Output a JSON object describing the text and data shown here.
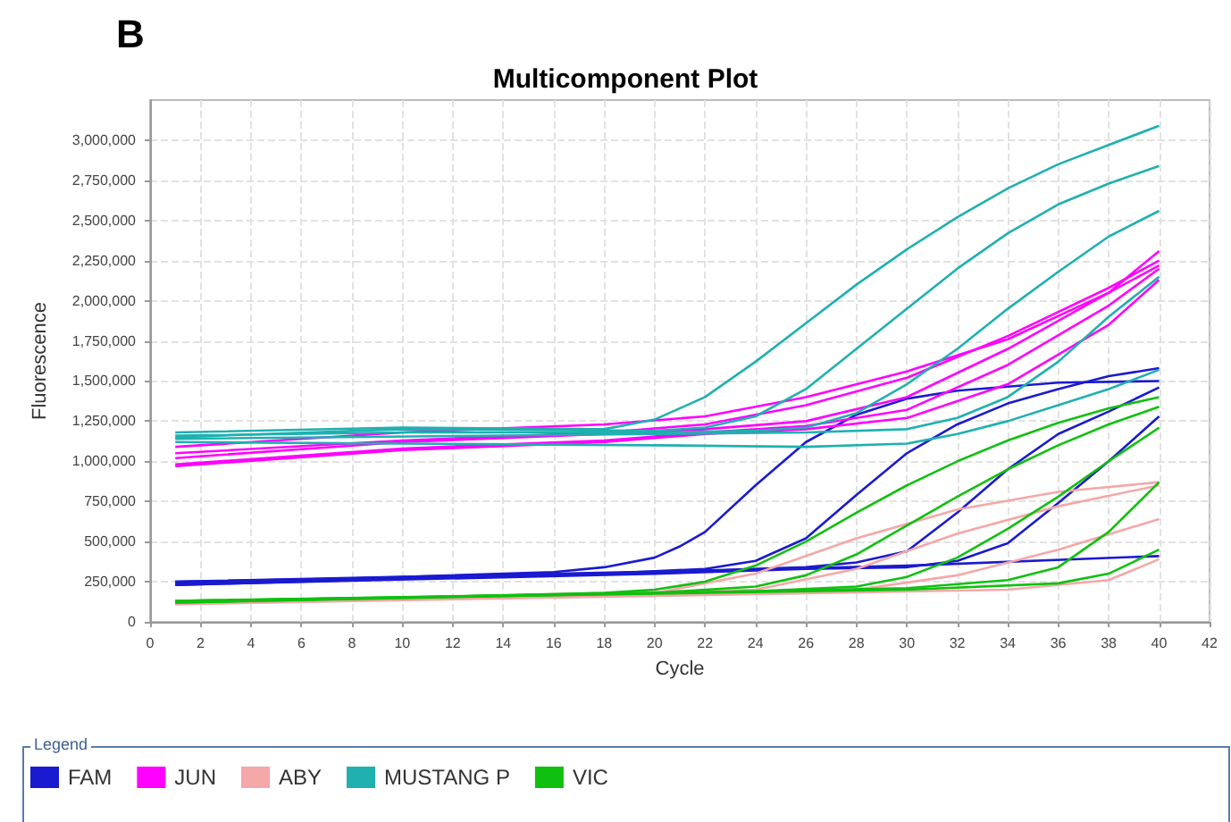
{
  "chart_data": {
    "type": "line",
    "title": "Multicomponent Plot",
    "xlabel": "Cycle",
    "ylabel": "Fluorescence",
    "legend_title": "Legend",
    "annotations": [
      "B"
    ],
    "xlim": [
      0,
      42
    ],
    "xticks": [
      0,
      2,
      4,
      6,
      8,
      10,
      12,
      14,
      16,
      18,
      20,
      22,
      24,
      26,
      28,
      30,
      32,
      34,
      36,
      38,
      40,
      42
    ],
    "ylim": [
      0,
      3250000
    ],
    "yticks": [
      {
        "value": 0,
        "label": "0"
      },
      {
        "value": 250000,
        "label": "250,000"
      },
      {
        "value": 500000,
        "label": "500,000"
      },
      {
        "value": 750000,
        "label": "750,000"
      },
      {
        "value": 1000000,
        "label": "1,000,000"
      },
      {
        "value": 1250000,
        "label": "1,250,000"
      },
      {
        "value": 1500000,
        "label": "1,500,000"
      },
      {
        "value": 1750000,
        "label": "1,750,000"
      },
      {
        "value": 2000000,
        "label": "2,000,000"
      },
      {
        "value": 2250000,
        "label": "2,250,000"
      },
      {
        "value": 2500000,
        "label": "2,500,000"
      },
      {
        "value": 2750000,
        "label": "2,750,000"
      },
      {
        "value": 3000000,
        "label": "3,000,000"
      }
    ],
    "grid": true,
    "legend": "bottom left",
    "series": [
      {
        "name": "FAM",
        "color": "#1a1ad0",
        "x": [
          1,
          10,
          16,
          18,
          20,
          21,
          22,
          24,
          26,
          28,
          30,
          32,
          36,
          40
        ],
        "values": [
          240000,
          280000,
          310000,
          340000,
          400000,
          470000,
          560000,
          850000,
          1120000,
          1290000,
          1390000,
          1440000,
          1490000,
          1500000
        ]
      },
      {
        "color": "#1a1ad0",
        "x": [
          1,
          18,
          22,
          24,
          26,
          28,
          30,
          32,
          34,
          36,
          38,
          40
        ],
        "values": [
          250000,
          300000,
          330000,
          380000,
          520000,
          790000,
          1050000,
          1230000,
          1360000,
          1450000,
          1530000,
          1580000
        ]
      },
      {
        "color": "#1a1ad0",
        "x": [
          1,
          22,
          26,
          28,
          30,
          32,
          34,
          36,
          38,
          40
        ],
        "values": [
          250000,
          320000,
          340000,
          370000,
          440000,
          680000,
          950000,
          1170000,
          1310000,
          1460000
        ]
      },
      {
        "color": "#1a1ad0",
        "x": [
          1,
          20,
          26,
          30,
          32,
          34,
          36,
          38,
          40
        ],
        "values": [
          230000,
          300000,
          330000,
          340000,
          380000,
          490000,
          740000,
          1000000,
          1280000
        ]
      },
      {
        "color": "#1a1ad0",
        "x": [
          1,
          20,
          30,
          40
        ],
        "values": [
          230000,
          310000,
          350000,
          410000
        ]
      },
      {
        "name": "JUN",
        "color": "#ff00ff",
        "x": [
          1,
          10,
          18,
          22,
          26,
          30,
          34,
          38,
          40
        ],
        "values": [
          1090000,
          1180000,
          1230000,
          1280000,
          1400000,
          1560000,
          1760000,
          2050000,
          2310000
        ]
      },
      {
        "color": "#ff00ff",
        "x": [
          1,
          10,
          18,
          22,
          26,
          30,
          34,
          38,
          40
        ],
        "values": [
          1050000,
          1130000,
          1180000,
          1230000,
          1350000,
          1520000,
          1780000,
          2080000,
          2250000
        ]
      },
      {
        "color": "#ff00ff",
        "x": [
          1,
          10,
          18,
          22,
          26,
          30,
          34,
          38,
          40
        ],
        "values": [
          1020000,
          1120000,
          1170000,
          1200000,
          1250000,
          1400000,
          1700000,
          2050000,
          2220000
        ]
      },
      {
        "color": "#ff00ff",
        "x": [
          1,
          10,
          18,
          22,
          26,
          30,
          34,
          38,
          40
        ],
        "values": [
          980000,
          1080000,
          1130000,
          1180000,
          1220000,
          1320000,
          1600000,
          1970000,
          2200000
        ]
      },
      {
        "color": "#ff00ff",
        "x": [
          1,
          10,
          18,
          22,
          26,
          30,
          34,
          38,
          40
        ],
        "values": [
          970000,
          1070000,
          1120000,
          1170000,
          1200000,
          1270000,
          1480000,
          1850000,
          2130000
        ]
      },
      {
        "name": "ABY",
        "color": "#f4a8a8",
        "x": [
          1,
          20,
          24,
          28,
          32,
          36,
          40
        ],
        "values": [
          120000,
          180000,
          300000,
          520000,
          700000,
          810000,
          870000
        ]
      },
      {
        "color": "#f4a8a8",
        "x": [
          1,
          24,
          28,
          32,
          36,
          40
        ],
        "values": [
          120000,
          200000,
          330000,
          550000,
          720000,
          850000
        ]
      },
      {
        "color": "#f4a8a8",
        "x": [
          1,
          28,
          32,
          36,
          40
        ],
        "values": [
          110000,
          200000,
          290000,
          450000,
          640000
        ]
      },
      {
        "color": "#f4a8a8",
        "x": [
          1,
          34,
          38,
          40
        ],
        "values": [
          110000,
          200000,
          260000,
          390000
        ]
      },
      {
        "name": "MUSTANG P",
        "color": "#20b0b0",
        "x": [
          1,
          10,
          18,
          20,
          22,
          24,
          26,
          28,
          30,
          32,
          34,
          36,
          38,
          40
        ],
        "values": [
          1180000,
          1210000,
          1200000,
          1260000,
          1400000,
          1620000,
          1860000,
          2100000,
          2320000,
          2520000,
          2700000,
          2850000,
          2970000,
          3090000
        ]
      },
      {
        "color": "#20b0b0",
        "x": [
          1,
          10,
          20,
          22,
          24,
          26,
          28,
          30,
          32,
          34,
          36,
          38,
          40
        ],
        "values": [
          1150000,
          1200000,
          1190000,
          1210000,
          1280000,
          1450000,
          1700000,
          1950000,
          2200000,
          2420000,
          2600000,
          2730000,
          2840000
        ]
      },
      {
        "color": "#20b0b0",
        "x": [
          1,
          10,
          20,
          24,
          26,
          28,
          30,
          32,
          34,
          36,
          38,
          40
        ],
        "values": [
          1160000,
          1180000,
          1180000,
          1190000,
          1210000,
          1300000,
          1480000,
          1700000,
          1950000,
          2180000,
          2400000,
          2560000
        ]
      },
      {
        "color": "#20b0b0",
        "x": [
          1,
          20,
          26,
          30,
          32,
          34,
          36,
          38,
          40
        ],
        "values": [
          1140000,
          1170000,
          1180000,
          1200000,
          1270000,
          1400000,
          1620000,
          1900000,
          2150000
        ]
      },
      {
        "color": "#20b0b0",
        "x": [
          1,
          10,
          20,
          26,
          30,
          32,
          34,
          36,
          38,
          40
        ],
        "values": [
          1120000,
          1110000,
          1100000,
          1090000,
          1110000,
          1170000,
          1250000,
          1350000,
          1450000,
          1570000
        ]
      },
      {
        "name": "VIC",
        "color": "#10c010",
        "x": [
          1,
          10,
          18,
          20,
          22,
          24,
          26,
          28,
          30,
          32,
          34,
          36,
          38,
          40
        ],
        "values": [
          120000,
          150000,
          180000,
          200000,
          250000,
          350000,
          500000,
          680000,
          850000,
          1000000,
          1130000,
          1240000,
          1330000,
          1400000
        ]
      },
      {
        "color": "#10c010",
        "x": [
          1,
          20,
          24,
          26,
          28,
          30,
          32,
          34,
          36,
          38,
          40
        ],
        "values": [
          130000,
          180000,
          220000,
          290000,
          420000,
          600000,
          780000,
          950000,
          1100000,
          1230000,
          1340000
        ]
      },
      {
        "color": "#10c010",
        "x": [
          1,
          24,
          28,
          30,
          32,
          34,
          36,
          38,
          40
        ],
        "values": [
          130000,
          190000,
          220000,
          280000,
          400000,
          580000,
          780000,
          1000000,
          1210000
        ]
      },
      {
        "color": "#10c010",
        "x": [
          1,
          30,
          34,
          36,
          38,
          40
        ],
        "values": [
          120000,
          210000,
          260000,
          340000,
          560000,
          870000
        ]
      },
      {
        "color": "#10c010",
        "x": [
          1,
          30,
          36,
          38,
          40
        ],
        "values": [
          130000,
          200000,
          240000,
          300000,
          450000
        ]
      }
    ]
  }
}
